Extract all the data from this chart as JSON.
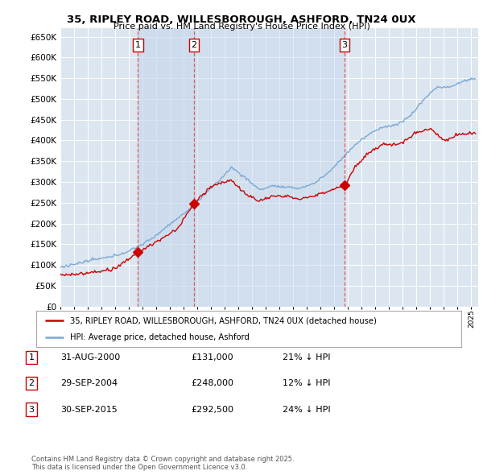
{
  "title": "35, RIPLEY ROAD, WILLESBOROUGH, ASHFORD, TN24 0UX",
  "subtitle": "Price paid vs. HM Land Registry's House Price Index (HPI)",
  "ylim": [
    0,
    670000
  ],
  "yticks": [
    0,
    50000,
    100000,
    150000,
    200000,
    250000,
    300000,
    350000,
    400000,
    450000,
    500000,
    550000,
    600000,
    650000
  ],
  "xlim_start": 1995.0,
  "xlim_end": 2025.5,
  "background_color": "#ffffff",
  "plot_bg_color": "#dce6f0",
  "grid_color": "#ffffff",
  "red_color": "#cc0000",
  "blue_color": "#7aa8d4",
  "vline_color": "#dd4444",
  "shade_color": "#c8d8ec",
  "sale_dates": [
    2000.667,
    2004.75,
    2015.75
  ],
  "sale_prices": [
    131000,
    248000,
    292500
  ],
  "sale_labels": [
    "1",
    "2",
    "3"
  ],
  "legend_entries": [
    "35, RIPLEY ROAD, WILLESBOROUGH, ASHFORD, TN24 0UX (detached house)",
    "HPI: Average price, detached house, Ashford"
  ],
  "table_rows": [
    {
      "num": "1",
      "date": "31-AUG-2000",
      "price": "£131,000",
      "hpi": "21% ↓ HPI"
    },
    {
      "num": "2",
      "date": "29-SEP-2004",
      "price": "£248,000",
      "hpi": "12% ↓ HPI"
    },
    {
      "num": "3",
      "date": "30-SEP-2015",
      "price": "£292,500",
      "hpi": "24% ↓ HPI"
    }
  ],
  "footer": "Contains HM Land Registry data © Crown copyright and database right 2025.\nThis data is licensed under the Open Government Licence v3.0."
}
